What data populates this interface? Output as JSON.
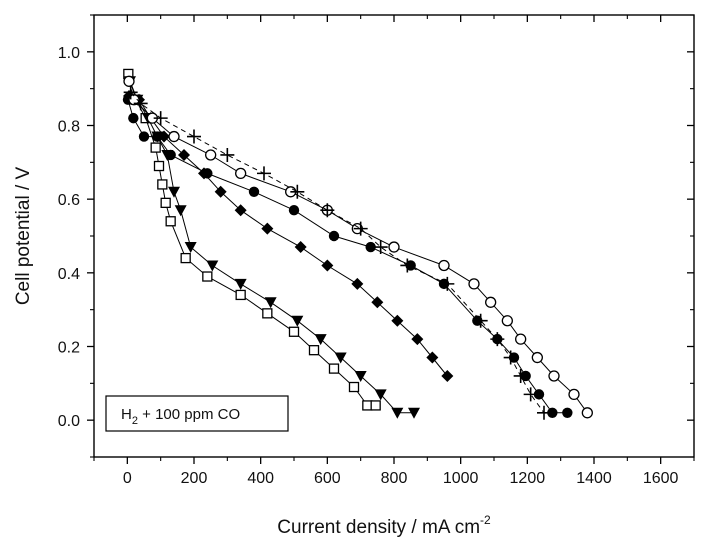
{
  "chart_data": {
    "type": "scatter",
    "xlabel": "Current density / mA cm",
    "xlabel_sup": "-2",
    "ylabel": "Cell potential / V",
    "xlim": [
      -100,
      1700
    ],
    "ylim": [
      -0.1,
      1.1
    ],
    "x_ticks": [
      0,
      200,
      400,
      600,
      800,
      1000,
      1200,
      1400,
      1600
    ],
    "x_tick_labels": [
      "0",
      "200",
      "400",
      "600",
      "800",
      "1000",
      "1200",
      "1400",
      "1600"
    ],
    "y_ticks": [
      0.0,
      0.2,
      0.4,
      0.6,
      0.8,
      1.0
    ],
    "y_tick_labels": [
      "0.0",
      "0.2",
      "0.4",
      "0.6",
      "0.8",
      "1.0"
    ],
    "grid": false,
    "legend": {
      "placement": "bottom-left",
      "text_main": "H",
      "text_sub": "2",
      "text_rest": " + 100 ppm CO"
    },
    "series": [
      {
        "marker": "open-square",
        "line": "solid",
        "x": [
          3,
          25,
          55,
          85,
          95,
          105,
          115,
          130,
          175,
          240,
          340,
          420,
          500,
          560,
          620,
          680,
          720,
          745
        ],
        "y": [
          0.94,
          0.87,
          0.82,
          0.74,
          0.69,
          0.64,
          0.59,
          0.54,
          0.44,
          0.39,
          0.34,
          0.29,
          0.24,
          0.19,
          0.14,
          0.09,
          0.04,
          0.04
        ]
      },
      {
        "marker": "filled-triangle-down",
        "line": "solid",
        "x": [
          8,
          30,
          62,
          90,
          120,
          140,
          160,
          190,
          255,
          340,
          430,
          510,
          580,
          640,
          700,
          760,
          810,
          860
        ],
        "y": [
          0.92,
          0.87,
          0.82,
          0.77,
          0.72,
          0.62,
          0.57,
          0.47,
          0.42,
          0.37,
          0.32,
          0.27,
          0.22,
          0.17,
          0.12,
          0.07,
          0.02,
          0.02
        ]
      },
      {
        "marker": "filled-diamond",
        "line": "solid",
        "x": [
          5,
          35,
          70,
          110,
          170,
          230,
          280,
          340,
          420,
          520,
          600,
          690,
          750,
          810,
          870,
          915,
          960
        ],
        "y": [
          0.88,
          0.87,
          0.82,
          0.77,
          0.72,
          0.67,
          0.62,
          0.57,
          0.52,
          0.47,
          0.42,
          0.37,
          0.32,
          0.27,
          0.22,
          0.17,
          0.12
        ]
      },
      {
        "marker": "filled-circle",
        "line": "solid",
        "x": [
          2,
          18,
          50,
          90,
          130,
          240,
          380,
          500,
          620,
          730,
          850,
          950,
          1050,
          1110,
          1160,
          1195,
          1235,
          1275,
          1320
        ],
        "y": [
          0.87,
          0.82,
          0.77,
          0.77,
          0.72,
          0.67,
          0.62,
          0.57,
          0.5,
          0.47,
          0.42,
          0.37,
          0.27,
          0.22,
          0.17,
          0.12,
          0.07,
          0.02,
          0.02
        ]
      },
      {
        "marker": "open-circle",
        "line": "solid",
        "x": [
          5,
          20,
          75,
          140,
          250,
          340,
          490,
          600,
          690,
          800,
          950,
          1040,
          1090,
          1140,
          1180,
          1230,
          1280,
          1340,
          1380
        ],
        "y": [
          0.92,
          0.87,
          0.82,
          0.77,
          0.72,
          0.67,
          0.62,
          0.57,
          0.52,
          0.47,
          0.42,
          0.37,
          0.32,
          0.27,
          0.22,
          0.17,
          0.12,
          0.07,
          0.02
        ]
      },
      {
        "marker": "plus",
        "line": "dashed",
        "x": [
          10,
          40,
          100,
          200,
          300,
          410,
          510,
          600,
          700,
          760,
          840,
          960,
          1060,
          1110,
          1150,
          1180,
          1210,
          1250
        ],
        "y": [
          0.89,
          0.86,
          0.82,
          0.77,
          0.72,
          0.67,
          0.62,
          0.57,
          0.52,
          0.47,
          0.42,
          0.37,
          0.27,
          0.22,
          0.17,
          0.12,
          0.07,
          0.02
        ]
      }
    ]
  }
}
